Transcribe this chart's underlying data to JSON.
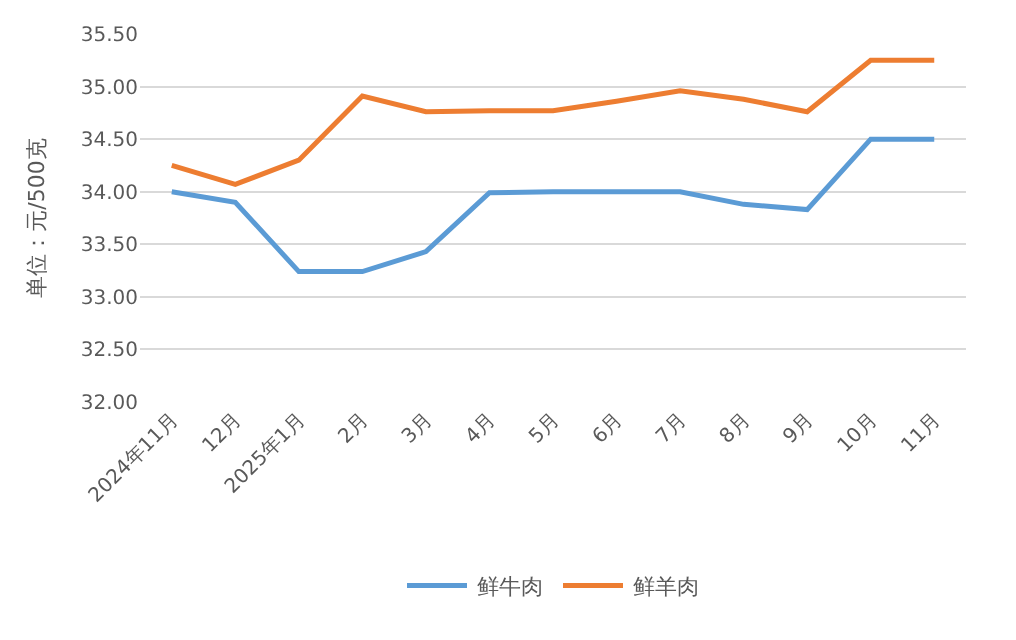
{
  "chart_data": {
    "type": "line",
    "ylabel": "单位：元/500克",
    "categories": [
      "2024年11月",
      "12月",
      "2025年1月",
      "2月",
      "3月",
      "4月",
      "5月",
      "6月",
      "7月",
      "8月",
      "9月",
      "10月",
      "11月"
    ],
    "series": [
      {
        "name": "鲜牛肉",
        "color": "#5b9bd5",
        "values": [
          34.0,
          33.9,
          33.24,
          33.24,
          33.43,
          33.99,
          34.0,
          34.0,
          34.0,
          33.88,
          33.83,
          34.5,
          34.5
        ]
      },
      {
        "name": "鲜羊肉",
        "color": "#ed7d31",
        "values": [
          34.25,
          34.07,
          34.3,
          34.91,
          34.76,
          34.77,
          34.77,
          34.86,
          34.96,
          34.88,
          34.76,
          35.25,
          35.25
        ]
      }
    ],
    "ylim": [
      32.0,
      35.5
    ],
    "yticks": [
      {
        "value": 32,
        "label": "32.00"
      },
      {
        "value": 32.5,
        "label": "32.50"
      },
      {
        "value": 33,
        "label": "33.00"
      },
      {
        "value": 33.5,
        "label": "33.50"
      },
      {
        "value": 34,
        "label": "34.00"
      },
      {
        "value": 34.5,
        "label": "34.50"
      },
      {
        "value": 35,
        "label": "35.00"
      },
      {
        "value": 35.5,
        "label": "35.50"
      }
    ],
    "grid": "y",
    "legend": "bottom",
    "marker": "none",
    "line_style": "solid"
  }
}
